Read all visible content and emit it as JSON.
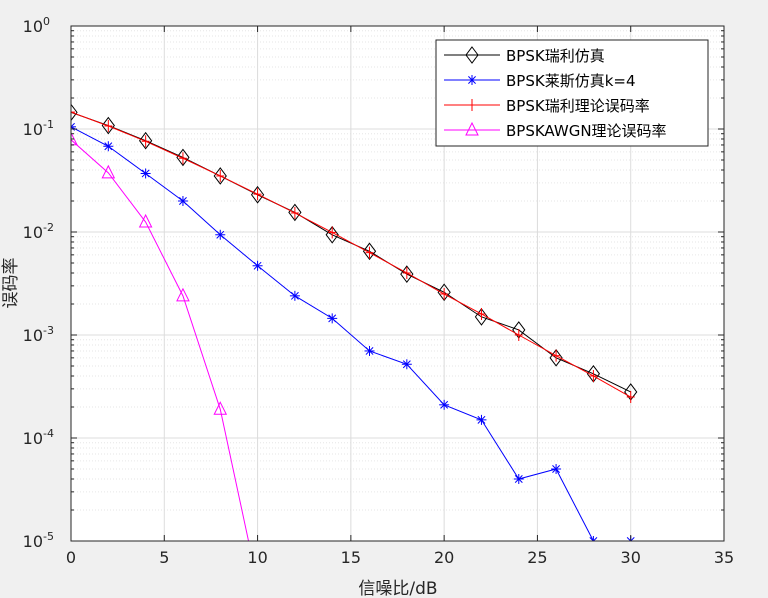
{
  "chart_data": {
    "type": "line",
    "title": "",
    "xlabel": "信噪比/dB",
    "ylabel": "误码率",
    "xlim": [
      0,
      35
    ],
    "ylim": [
      1e-05,
      1
    ],
    "yscale": "log",
    "grid": true,
    "minor_grid": true,
    "legend_position": "top-right",
    "x_ticks": [
      0,
      5,
      10,
      15,
      20,
      25,
      30,
      35
    ],
    "y_ticks": [
      {
        "base": "10",
        "exp": "0",
        "value": 1
      },
      {
        "base": "10",
        "exp": "-1",
        "value": 0.1
      },
      {
        "base": "10",
        "exp": "-2",
        "value": 0.01
      },
      {
        "base": "10",
        "exp": "-3",
        "value": 0.001
      },
      {
        "base": "10",
        "exp": "-4",
        "value": 0.0001
      },
      {
        "base": "10",
        "exp": "-5",
        "value": 1e-05
      }
    ],
    "series": [
      {
        "name": "BPSK瑞利仿真",
        "color": "#000000",
        "marker": "diamond",
        "x": [
          0,
          2,
          4,
          6,
          8,
          10,
          12,
          14,
          16,
          18,
          20,
          22,
          24,
          26,
          28,
          30
        ],
        "y": [
          0.145,
          0.108,
          0.077,
          0.053,
          0.035,
          0.023,
          0.0155,
          0.0094,
          0.0065,
          0.0039,
          0.0026,
          0.0015,
          0.00112,
          0.0006,
          0.00042,
          0.00028
        ]
      },
      {
        "name": "BPSK莱斯仿真k=4",
        "color": "#0000ff",
        "marker": "asterisk",
        "x": [
          0,
          2,
          4,
          6,
          8,
          10,
          12,
          14,
          16,
          18,
          20,
          22,
          24,
          26,
          28,
          30
        ],
        "y": [
          0.105,
          0.068,
          0.037,
          0.02,
          0.0094,
          0.0047,
          0.0024,
          0.00145,
          0.0007,
          0.00052,
          0.00021,
          0.00015,
          4e-05,
          5e-05,
          1e-05,
          1e-05
        ]
      },
      {
        "name": "BPSK瑞利理论误码率",
        "color": "#ff0000",
        "marker": "plus",
        "x": [
          0,
          2,
          4,
          6,
          8,
          10,
          12,
          14,
          16,
          18,
          20,
          22,
          24,
          26,
          28,
          30
        ],
        "y": [
          0.146,
          0.107,
          0.076,
          0.052,
          0.035,
          0.0233,
          0.0153,
          0.0099,
          0.0063,
          0.004,
          0.0025,
          0.0016,
          0.001,
          0.00063,
          0.0004,
          0.00025
        ]
      },
      {
        "name": "BPSKAWGN理论误码率",
        "color": "#ff00ff",
        "marker": "triangle",
        "x": [
          0,
          2,
          4,
          6,
          8,
          10
        ],
        "y": [
          0.0786,
          0.0375,
          0.0125,
          0.0024,
          0.00019,
          3.9e-06
        ]
      }
    ]
  }
}
